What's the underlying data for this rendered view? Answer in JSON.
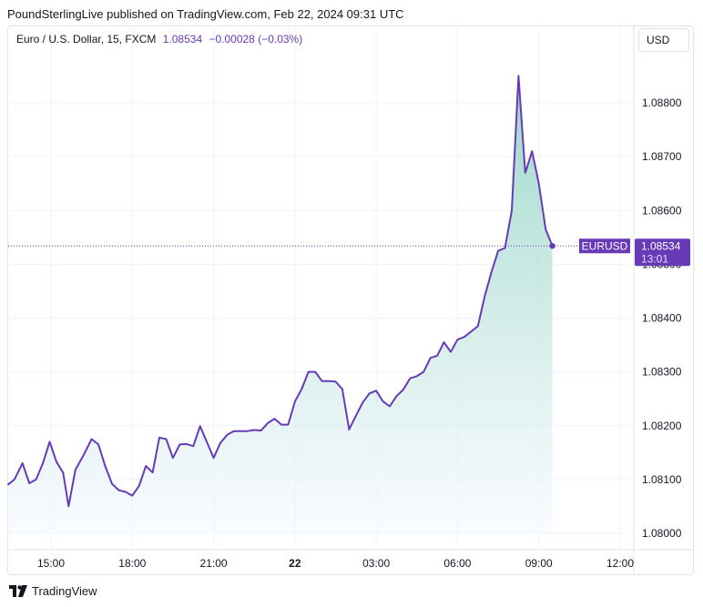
{
  "header": {
    "publisher": "PoundSterlingLive published on TradingView.com, Feb 22, 2024 09:31 UTC"
  },
  "legend": {
    "symbol": "Euro / U.S. Dollar, 15, FXCM",
    "price": "1.08534",
    "change": "−0.00028 (−0.03%)"
  },
  "currency_button": "USD",
  "footer": {
    "brand": "TradingView"
  },
  "colors": {
    "line": "#673ab7",
    "area_top": "#8fd3bf",
    "area_bottom": "#f4f8ff",
    "grid": "#f0f3fa"
  },
  "chart_data": {
    "type": "area",
    "y_ticks": [
      "1.08800",
      "1.08700",
      "1.08600",
      "1.08500",
      "1.08400",
      "1.08300",
      "1.08200",
      "1.08100",
      "1.08000"
    ],
    "ylim": [
      1.0797,
      1.0893
    ],
    "x_ticks": [
      {
        "label": "15:00",
        "hours": 15
      },
      {
        "label": "18:00",
        "hours": 18
      },
      {
        "label": "21:00",
        "hours": 21
      },
      {
        "label": "22",
        "hours": 24,
        "bold": true
      },
      {
        "label": "03:00",
        "hours": 27
      },
      {
        "label": "06:00",
        "hours": 30
      },
      {
        "label": "09:00",
        "hours": 33
      },
      {
        "label": "12:00",
        "hours": 36
      }
    ],
    "xlim": [
      13.4,
      36.6
    ],
    "price_label": {
      "symbol": "EURUSD",
      "price": "1.08534",
      "countdown": "13:01",
      "value": 1.08534
    },
    "series": [
      {
        "points": [
          [
            13.4,
            1.0809
          ],
          [
            13.65,
            1.081
          ],
          [
            13.95,
            1.0813
          ],
          [
            14.2,
            1.08093
          ],
          [
            14.45,
            1.081
          ],
          [
            14.7,
            1.0813
          ],
          [
            14.95,
            1.0817
          ],
          [
            15.2,
            1.08133
          ],
          [
            15.45,
            1.08112
          ],
          [
            15.65,
            1.0805
          ],
          [
            15.9,
            1.08118
          ],
          [
            16.2,
            1.08145
          ],
          [
            16.5,
            1.08175
          ],
          [
            16.75,
            1.08165
          ],
          [
            17.0,
            1.08125
          ],
          [
            17.25,
            1.08092
          ],
          [
            17.5,
            1.0808
          ],
          [
            17.75,
            1.08077
          ],
          [
            18.0,
            1.0807
          ],
          [
            18.25,
            1.08088
          ],
          [
            18.5,
            1.08125
          ],
          [
            18.75,
            1.08113
          ],
          [
            19.0,
            1.08178
          ],
          [
            19.25,
            1.08175
          ],
          [
            19.5,
            1.0814
          ],
          [
            19.75,
            1.08165
          ],
          [
            20.0,
            1.08166
          ],
          [
            20.25,
            1.08162
          ],
          [
            20.5,
            1.08199
          ],
          [
            20.75,
            1.0817
          ],
          [
            21.0,
            1.0814
          ],
          [
            21.25,
            1.08168
          ],
          [
            21.5,
            1.08183
          ],
          [
            21.75,
            1.0819
          ],
          [
            22.0,
            1.0819
          ],
          [
            22.25,
            1.0819
          ],
          [
            22.5,
            1.08192
          ],
          [
            22.75,
            1.08191
          ],
          [
            23.0,
            1.08205
          ],
          [
            23.25,
            1.08213
          ],
          [
            23.5,
            1.08202
          ],
          [
            23.75,
            1.08202
          ],
          [
            24.0,
            1.08245
          ],
          [
            24.25,
            1.08268
          ],
          [
            24.5,
            1.083
          ],
          [
            24.75,
            1.083
          ],
          [
            25.0,
            1.08283
          ],
          [
            25.25,
            1.08283
          ],
          [
            25.5,
            1.08282
          ],
          [
            25.75,
            1.08268
          ],
          [
            26.0,
            1.08193
          ],
          [
            26.25,
            1.08218
          ],
          [
            26.5,
            1.08243
          ],
          [
            26.75,
            1.0826
          ],
          [
            27.0,
            1.08265
          ],
          [
            27.25,
            1.08245
          ],
          [
            27.5,
            1.08236
          ],
          [
            27.75,
            1.08255
          ],
          [
            28.0,
            1.08267
          ],
          [
            28.25,
            1.08288
          ],
          [
            28.5,
            1.08292
          ],
          [
            28.75,
            1.083
          ],
          [
            29.0,
            1.08326
          ],
          [
            29.25,
            1.0833
          ],
          [
            29.5,
            1.08355
          ],
          [
            29.75,
            1.08337
          ],
          [
            30.0,
            1.0836
          ],
          [
            30.25,
            1.08365
          ],
          [
            30.5,
            1.08375
          ],
          [
            30.75,
            1.08385
          ],
          [
            31.0,
            1.0844
          ],
          [
            31.25,
            1.08485
          ],
          [
            31.5,
            1.08525
          ],
          [
            31.75,
            1.0853
          ],
          [
            32.0,
            1.086
          ],
          [
            32.25,
            1.0885
          ],
          [
            32.5,
            1.0867
          ],
          [
            32.75,
            1.0871
          ],
          [
            33.0,
            1.0865
          ],
          [
            33.25,
            1.08565
          ],
          [
            33.5,
            1.08534
          ]
        ]
      }
    ]
  }
}
